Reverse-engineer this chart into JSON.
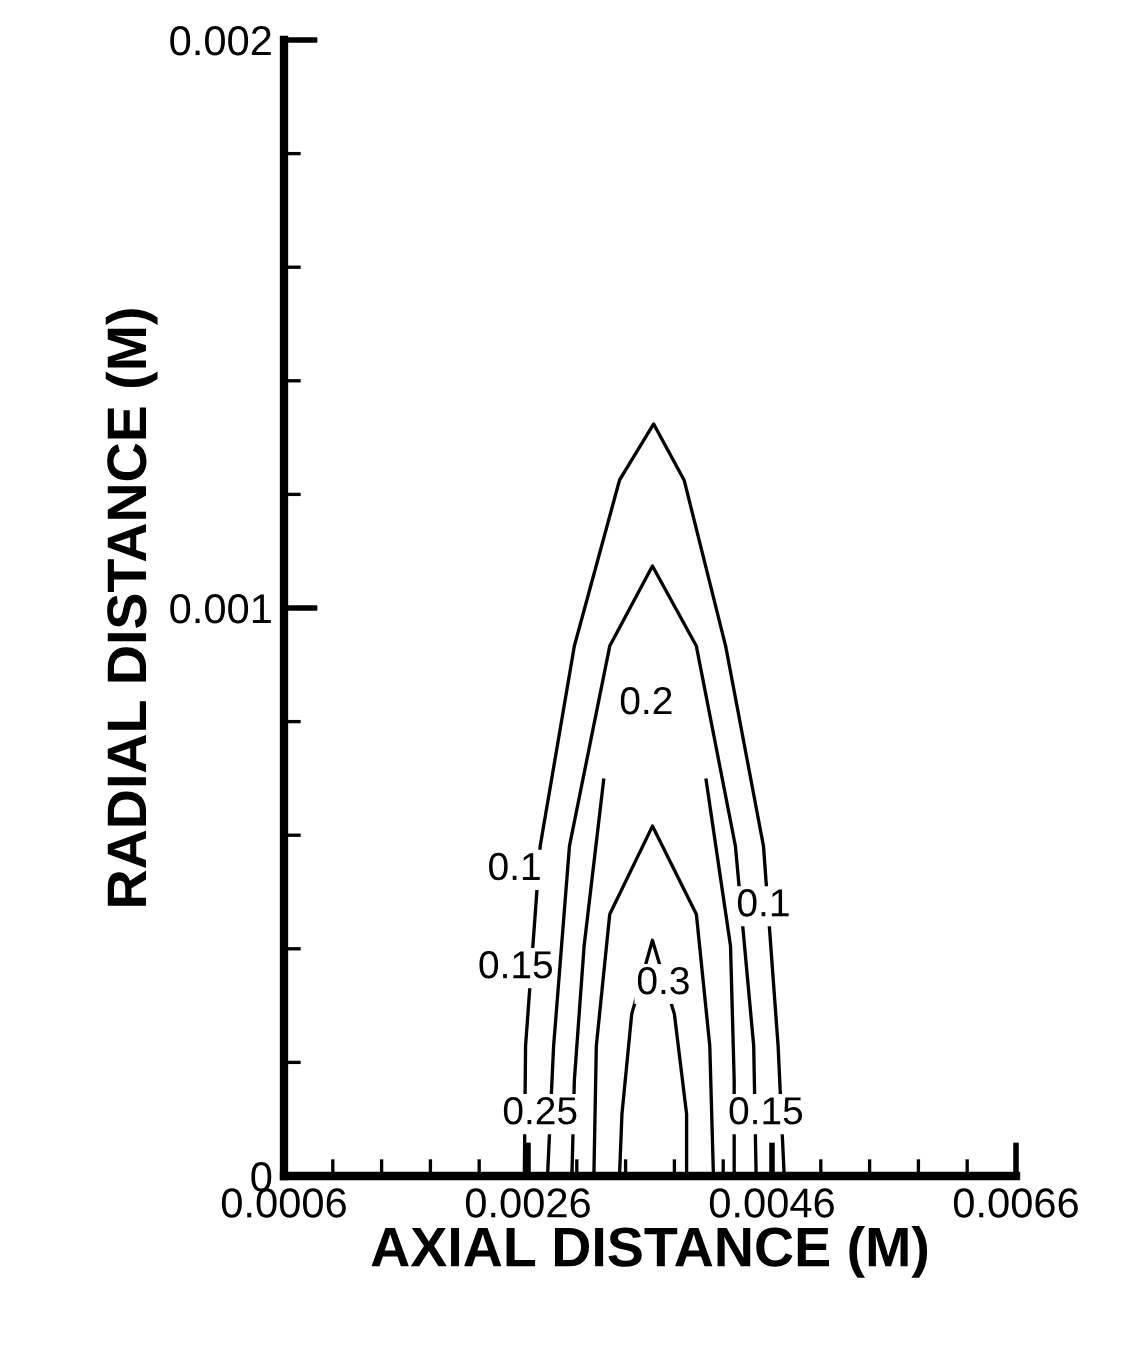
{
  "chart_data": {
    "type": "line",
    "xlabel": "AXIAL DISTANCE (M)",
    "ylabel": "RADIAL DISTANCE (M)",
    "xlim": [
      0.0006,
      0.0066
    ],
    "ylim": [
      0,
      0.002
    ],
    "xticks": [
      0.0006,
      {
        "value": 0.001,
        "label": null
      },
      {
        "value": 0.0014,
        "label": null
      },
      {
        "value": 0.0018,
        "label": null
      },
      {
        "value": 0.0022,
        "label": null
      },
      0.0026,
      {
        "value": 0.003,
        "label": null
      },
      {
        "value": 0.0034,
        "label": null
      },
      {
        "value": 0.0038,
        "label": null
      },
      {
        "value": 0.0042,
        "label": null
      },
      0.0046,
      {
        "value": 0.005,
        "label": null
      },
      {
        "value": 0.0054,
        "label": null
      },
      {
        "value": 0.0058,
        "label": null
      },
      {
        "value": 0.0062,
        "label": null
      },
      0.0066
    ],
    "yticks": [
      0,
      {
        "value": 0.0002,
        "label": null
      },
      {
        "value": 0.0004,
        "label": null
      },
      {
        "value": 0.0006,
        "label": null
      },
      {
        "value": 0.0008,
        "label": null
      },
      0.001,
      {
        "value": 0.0012,
        "label": null
      },
      {
        "value": 0.0014,
        "label": null
      },
      {
        "value": 0.0016,
        "label": null
      },
      {
        "value": 0.0018,
        "label": null
      },
      0.002
    ],
    "grid": false,
    "marker": "none",
    "line_style": "solid",
    "series": [
      {
        "color": "#000000",
        "x": [
          0.00257,
          0.00258,
          0.0027,
          0.00298,
          0.00335,
          0.00363,
          0.00388,
          0.00422,
          0.00453,
          0.00465,
          0.0047
        ],
        "values": [
          0,
          0.000229,
          0.000581,
          0.000933,
          0.001225,
          0.001324,
          0.001225,
          0.000933,
          0.000581,
          0.000229,
          0
        ]
      },
      {
        "color": "#000000",
        "x": [
          0.00276,
          0.00281,
          0.00294,
          0.00327,
          0.00362,
          0.00398,
          0.0043,
          0.00445,
          0.00447
        ],
        "values": [
          0,
          0.000229,
          0.000581,
          0.000933,
          0.001074,
          0.000933,
          0.000581,
          0.000229,
          0
        ]
      },
      {
        "color": "#000000",
        "x": [
          0.00296,
          0.00298,
          0.00306,
          0.00322,
          0.00362,
          0.00406,
          0.00426,
          0.00429,
          0.00429
        ],
        "values": [
          0,
          0.000169,
          0.000405,
          0.000697,
          null,
          0.000697,
          0.000405,
          0.000169,
          0
        ]
      },
      {
        "color": "#000000",
        "x": [
          0.00314,
          0.00316,
          0.00327,
          0.00362,
          0.00398,
          0.00409,
          0.00412
        ],
        "values": [
          0,
          0.000229,
          0.000461,
          0.000616,
          0.000461,
          0.000229,
          0
        ]
      },
      {
        "color": "#000000",
        "x": [
          0.00335,
          0.00337,
          0.00345,
          0.00362,
          0.0038,
          0.0039,
          0.0039
        ],
        "values": [
          0,
          0.000109,
          0.000285,
          0.000415,
          0.000285,
          0.000109,
          0
        ]
      }
    ],
    "annotations": [
      {
        "text": "0.1",
        "x": 0.00249,
        "y": 0.000539
      },
      {
        "text": "0.1",
        "x": 0.00453,
        "y": 0.000475
      },
      {
        "text": "0.15",
        "x": 0.0025,
        "y": 0.000366
      },
      {
        "text": "0.2",
        "x": 0.00357,
        "y": 0.000831
      },
      {
        "text": "0.3",
        "x": 0.00371,
        "y": 0.000338
      },
      {
        "text": "0.25",
        "x": 0.0027,
        "y": 0.000109
      },
      {
        "text": "0.15",
        "x": 0.00455,
        "y": 0.000109
      }
    ]
  }
}
